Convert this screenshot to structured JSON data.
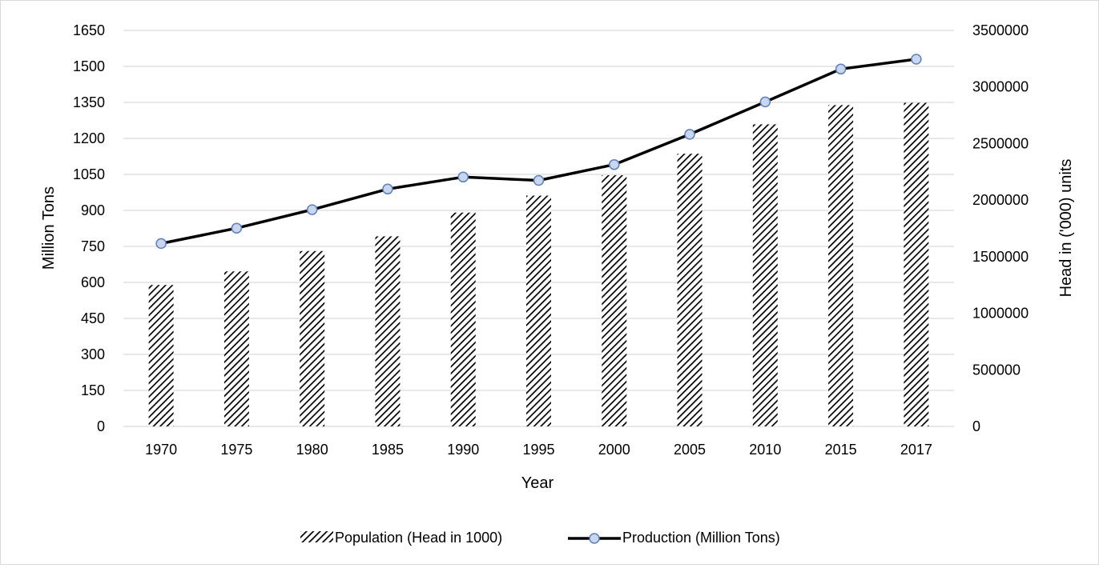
{
  "chart_data": {
    "type": "bar",
    "title": "",
    "xlabel": "Year",
    "ylabel_left": "Million Tons",
    "ylabel_right": "Head in ('000) units",
    "categories": [
      "1970",
      "1975",
      "1980",
      "1985",
      "1990",
      "1995",
      "2000",
      "2005",
      "2010",
      "2015",
      "2017"
    ],
    "ylim_left": [
      0,
      1650
    ],
    "yticks_left": [
      "0",
      "150",
      "300",
      "450",
      "600",
      "750",
      "900",
      "1050",
      "1200",
      "1350",
      "1500",
      "1650"
    ],
    "ylim_right": [
      0,
      3500000
    ],
    "yticks_right": [
      "0",
      "500000",
      "1000000",
      "1500000",
      "2000000",
      "2500000",
      "3000000",
      "3500000"
    ],
    "grid": true,
    "legend_position": "bottom",
    "series": [
      {
        "name": "Population (Head in 1000)",
        "type": "bar",
        "axis": "right",
        "pattern": "diagonal-hatch",
        "color": "#000000",
        "values": [
          1250000,
          1370000,
          1550000,
          1680000,
          1890000,
          2040000,
          2220000,
          2410000,
          2670000,
          2840000,
          2860000
        ]
      },
      {
        "name": "Production (Million Tons)",
        "type": "line",
        "axis": "left",
        "color": "#000000",
        "marker_color": "#c9d6ee",
        "marker_edge": "#5b7fbf",
        "values": [
          762,
          826,
          903,
          989,
          1039,
          1025,
          1091,
          1217,
          1352,
          1489,
          1530
        ]
      }
    ]
  }
}
